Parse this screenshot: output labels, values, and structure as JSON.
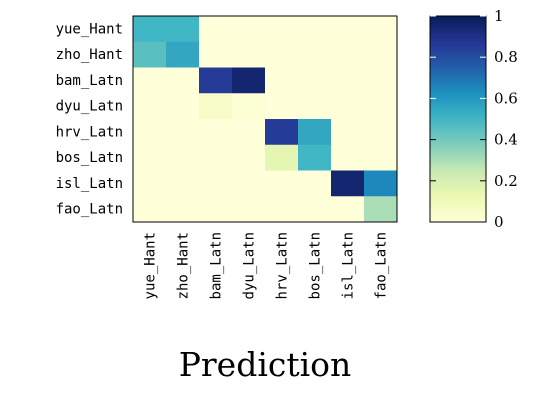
{
  "chart_data": {
    "type": "heatmap",
    "title": "",
    "xlabel": "Prediction",
    "ylabel": "",
    "rows": [
      "yue_Hant",
      "zho_Hant",
      "bam_Latn",
      "dyu_Latn",
      "hrv_Latn",
      "bos_Latn",
      "isl_Latn",
      "fao_Latn"
    ],
    "columns": [
      "yue_Hant",
      "zho_Hant",
      "bam_Latn",
      "dyu_Latn",
      "hrv_Latn",
      "bos_Latn",
      "isl_Latn",
      "fao_Latn"
    ],
    "values": [
      [
        0.5,
        0.5,
        0,
        0,
        0,
        0,
        0,
        0
      ],
      [
        0.45,
        0.55,
        0,
        0,
        0,
        0,
        0,
        0
      ],
      [
        0,
        0,
        0.85,
        0.95,
        0,
        0,
        0,
        0
      ],
      [
        0,
        0,
        0.05,
        0.02,
        0,
        0,
        0,
        0
      ],
      [
        0,
        0,
        0,
        0,
        0.85,
        0.55,
        0,
        0
      ],
      [
        0,
        0,
        0,
        0,
        0.15,
        0.5,
        0,
        0
      ],
      [
        0,
        0,
        0,
        0,
        0,
        0,
        0.95,
        0.65
      ],
      [
        0,
        0,
        0,
        0,
        0,
        0,
        0,
        0.3
      ]
    ],
    "colorbar": {
      "min": 0,
      "max": 1,
      "ticks": [
        "0",
        "0.2",
        "0.4",
        "0.6",
        "0.8",
        "1"
      ],
      "colormap": "YlGnBu"
    },
    "grid": false,
    "legend": "colorbar-right"
  }
}
